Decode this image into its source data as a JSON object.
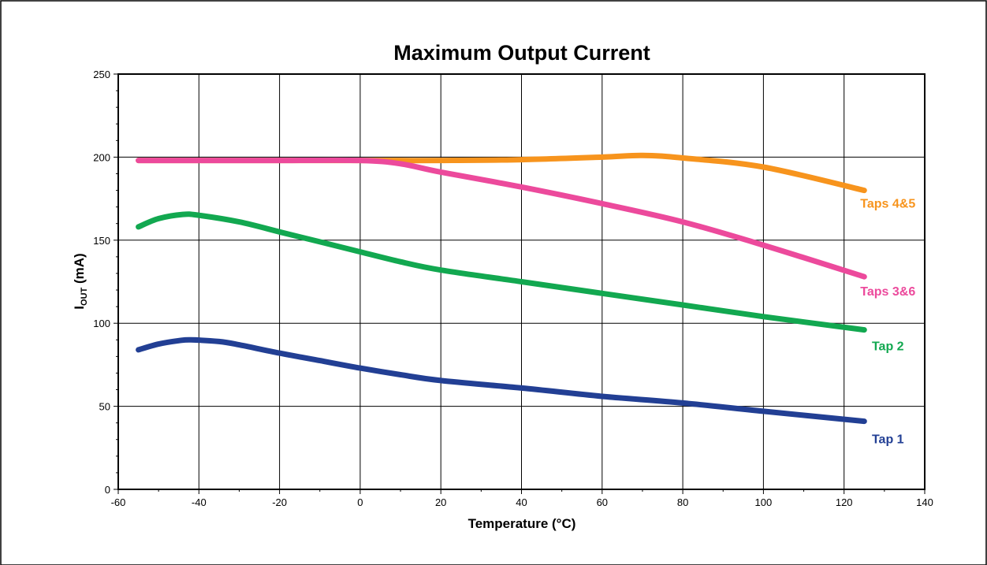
{
  "chart_data": {
    "type": "line",
    "title": "Maximum Output Current",
    "xlabel": "Temperature (°C)",
    "ylabel_main": "I",
    "ylabel_sub": "OUT",
    "ylabel_unit": " (mA)",
    "xlim": [
      -60,
      140
    ],
    "ylim": [
      0,
      250
    ],
    "xticks": [
      -60,
      -40,
      -20,
      0,
      20,
      40,
      60,
      80,
      100,
      120,
      140
    ],
    "yticks": [
      0,
      50,
      100,
      150,
      200,
      250
    ],
    "grid": true,
    "legend": "direct labels at line ends",
    "series": [
      {
        "name": "Taps 4&5",
        "color": "#F7941D",
        "x": [
          -55,
          -40,
          -20,
          0,
          20,
          40,
          60,
          70,
          80,
          100,
          125
        ],
        "y": [
          198,
          198,
          198,
          198,
          198,
          198.5,
          200,
          201,
          199.5,
          194,
          180
        ]
      },
      {
        "name": "Taps 3&6",
        "color": "#EC4A9C",
        "x": [
          -55,
          -40,
          -20,
          0,
          10,
          20,
          40,
          60,
          80,
          100,
          125
        ],
        "y": [
          198,
          198,
          198,
          198,
          196,
          191,
          182,
          172,
          161,
          147,
          128
        ]
      },
      {
        "name": "Tap 2",
        "color": "#12A850",
        "x": [
          -55,
          -50,
          -44,
          -40,
          -30,
          -20,
          -10,
          0,
          10,
          20,
          40,
          60,
          80,
          100,
          125
        ],
        "y": [
          158,
          163,
          165.5,
          165,
          161,
          155,
          149,
          143,
          137,
          132,
          125,
          118,
          111,
          104,
          96
        ]
      },
      {
        "name": "Tap 1",
        "color": "#223F94",
        "x": [
          -55,
          -50,
          -45,
          -42,
          -35,
          -30,
          -20,
          -10,
          0,
          10,
          20,
          40,
          60,
          80,
          100,
          125
        ],
        "y": [
          84,
          87.5,
          89.5,
          90,
          89,
          87,
          82,
          77.5,
          73,
          69,
          65.5,
          61,
          56,
          52,
          47,
          41
        ]
      }
    ]
  }
}
